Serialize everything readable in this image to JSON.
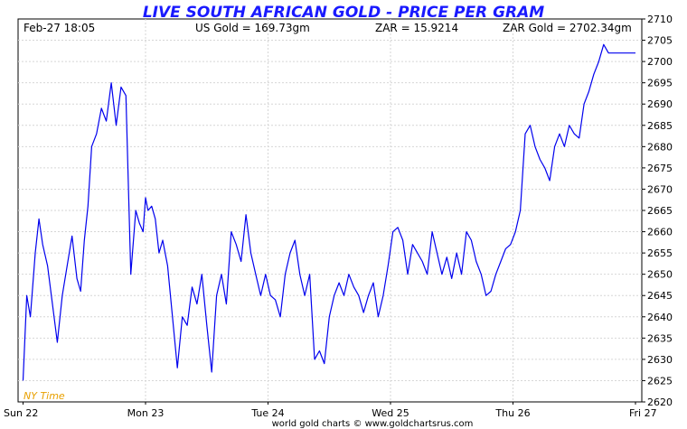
{
  "chart_data": {
    "type": "line",
    "title": "LIVE SOUTH AFRICAN GOLD - PRICE PER GRAM",
    "header": {
      "datetime": "Feb-27  18:05",
      "us_gold": "US Gold = 169.73gm",
      "zar": "ZAR = 15.9214",
      "zar_gold": "ZAR Gold = 2702.34gm"
    },
    "timezone_label": "NY Time",
    "footer": "world gold charts © www.goldchartsrus.com",
    "x_labels": [
      "Sun 22",
      "Mon 23",
      "Tue 24",
      "Wed 25",
      "Thu 26",
      "Fri 27"
    ],
    "y_ticks": [
      2620,
      2625,
      2630,
      2635,
      2640,
      2645,
      2650,
      2655,
      2660,
      2665,
      2670,
      2675,
      2680,
      2685,
      2690,
      2695,
      2700,
      2705,
      2710
    ],
    "ylim": [
      2620,
      2710
    ],
    "xlim": [
      0,
      5
    ],
    "grid": true,
    "line_color": "#0000ee",
    "series": [
      {
        "x": [
          0.0,
          0.03,
          0.06,
          0.1,
          0.13,
          0.16,
          0.2,
          0.24,
          0.28,
          0.32,
          0.36,
          0.4,
          0.44,
          0.47,
          0.5,
          0.53,
          0.56,
          0.6,
          0.64,
          0.68,
          0.72,
          0.76,
          0.8,
          0.84,
          0.88,
          0.92,
          0.95,
          0.98,
          1.0,
          1.02,
          1.05,
          1.08,
          1.11,
          1.14,
          1.18,
          1.22,
          1.26,
          1.3,
          1.34,
          1.38,
          1.42,
          1.46,
          1.5,
          1.54,
          1.58,
          1.62,
          1.66,
          1.7,
          1.74,
          1.78,
          1.82,
          1.86,
          1.9,
          1.94,
          1.98,
          2.02,
          2.06,
          2.1,
          2.14,
          2.18,
          2.22,
          2.26,
          2.3,
          2.34,
          2.38,
          2.42,
          2.46,
          2.5,
          2.54,
          2.58,
          2.62,
          2.66,
          2.7,
          2.74,
          2.78,
          2.82,
          2.86,
          2.9,
          2.94,
          2.98,
          3.02,
          3.06,
          3.1,
          3.14,
          3.18,
          3.22,
          3.26,
          3.3,
          3.34,
          3.38,
          3.42,
          3.46,
          3.5,
          3.54,
          3.58,
          3.62,
          3.66,
          3.7,
          3.74,
          3.78,
          3.82,
          3.86,
          3.9,
          3.94,
          3.98,
          4.02,
          4.06,
          4.1,
          4.14,
          4.18,
          4.22,
          4.26,
          4.3,
          4.34,
          4.38,
          4.42,
          4.46,
          4.5,
          4.54,
          4.58,
          4.62,
          4.66,
          4.7,
          4.74,
          4.78,
          4.82,
          4.86,
          4.9,
          4.94,
          4.97,
          5.0
        ],
        "y": [
          2625,
          2645,
          2640,
          2655,
          2663,
          2657,
          2652,
          2643,
          2634,
          2645,
          2652,
          2659,
          2649,
          2646,
          2658,
          2666,
          2680,
          2683,
          2689,
          2686,
          2695,
          2685,
          2694,
          2692,
          2650,
          2665,
          2662,
          2660,
          2668,
          2665,
          2666,
          2663,
          2655,
          2658,
          2652,
          2640,
          2628,
          2640,
          2638,
          2647,
          2643,
          2650,
          2638,
          2627,
          2645,
          2650,
          2643,
          2660,
          2657,
          2653,
          2664,
          2655,
          2650,
          2645,
          2650,
          2645,
          2644,
          2640,
          2650,
          2655,
          2658,
          2650,
          2645,
          2650,
          2630,
          2632,
          2629,
          2640,
          2645,
          2648,
          2645,
          2650,
          2647,
          2645,
          2641,
          2645,
          2648,
          2640,
          2645,
          2652,
          2660,
          2661,
          2658,
          2650,
          2657,
          2655,
          2653,
          2650,
          2660,
          2655,
          2650,
          2654,
          2649,
          2655,
          2650,
          2660,
          2658,
          2653,
          2650,
          2645,
          2646,
          2650,
          2653,
          2656,
          2657,
          2660,
          2665,
          2683,
          2685,
          2680,
          2677,
          2675,
          2672,
          2680,
          2683,
          2680,
          2685,
          2683,
          2682,
          2690,
          2693,
          2697,
          2700,
          2704,
          2702,
          2702,
          2702,
          2702,
          2702,
          2702,
          2702
        ]
      }
    ]
  }
}
